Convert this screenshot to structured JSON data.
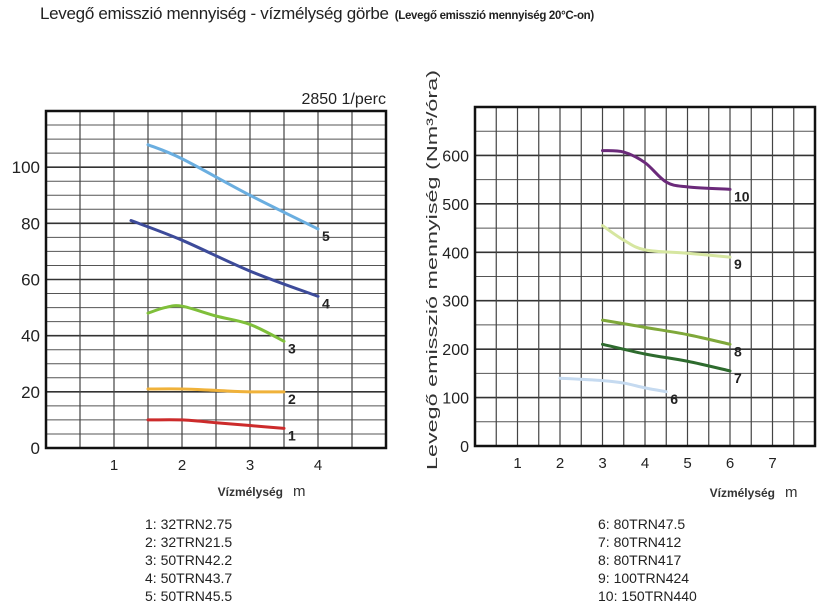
{
  "title": "Levegő emisszió mennyiség - vízmélység görbe",
  "subtitle": "(Levegő emisszió mennyiség 20°C-on)",
  "chart_data": [
    {
      "type": "line",
      "title": "2850 1/perc",
      "xlabel": "Vízmélység",
      "xunit": "m",
      "ylabel": "",
      "xlim": [
        0,
        5
      ],
      "ylim": [
        0,
        120
      ],
      "xticks": [
        "1",
        "2",
        "3",
        "4"
      ],
      "xtick_values": [
        1,
        2,
        3,
        4
      ],
      "yticks": [
        "0",
        "20",
        "40",
        "60",
        "80",
        "100"
      ],
      "ytick_values": [
        0,
        20,
        40,
        60,
        80,
        100
      ],
      "grid": true,
      "series": [
        {
          "name": "1",
          "color": "#cc2b2b",
          "x": [
            1.5,
            2,
            2.5,
            3,
            3.5
          ],
          "y": [
            10,
            10,
            9,
            8,
            7
          ]
        },
        {
          "name": "2",
          "color": "#f0b23a",
          "x": [
            1.5,
            2,
            2.5,
            3,
            3.5
          ],
          "y": [
            21,
            21,
            20.5,
            20,
            20
          ]
        },
        {
          "name": "3",
          "color": "#7fbf3a",
          "x": [
            1.5,
            1.75,
            2,
            2.5,
            3,
            3.5
          ],
          "y": [
            48,
            50,
            50.5,
            47,
            44,
            38
          ]
        },
        {
          "name": "4",
          "color": "#3d4b9a",
          "x": [
            1.25,
            2,
            3,
            4
          ],
          "y": [
            81,
            74,
            63,
            54
          ]
        },
        {
          "name": "5",
          "color": "#6aaee0",
          "x": [
            1.5,
            2,
            3,
            4
          ],
          "y": [
            108,
            103,
            90,
            78
          ]
        }
      ],
      "legend": [
        "1: 32TRN2.75",
        "2: 32TRN21.5",
        "3: 50TRN42.2",
        "4: 50TRN43.7",
        "5: 50TRN45.5"
      ]
    },
    {
      "type": "line",
      "title": "",
      "xlabel": "Vízmélység",
      "xunit": "m",
      "ylabel": "Levegő emisszió mennyiség (Nm³/óra)",
      "xlim": [
        0,
        8
      ],
      "ylim": [
        0,
        700
      ],
      "xticks": [
        "1",
        "2",
        "3",
        "4",
        "5",
        "6",
        "7"
      ],
      "xtick_values": [
        1,
        2,
        3,
        4,
        5,
        6,
        7
      ],
      "yticks": [
        "0",
        "100",
        "200",
        "300",
        "400",
        "500",
        "600"
      ],
      "ytick_values": [
        0,
        100,
        200,
        300,
        400,
        500,
        600
      ],
      "grid": true,
      "series": [
        {
          "name": "6",
          "color": "#c5daf0",
          "x": [
            2,
            3,
            3.5,
            4,
            4.5
          ],
          "y": [
            140,
            135,
            130,
            120,
            112
          ]
        },
        {
          "name": "7",
          "color": "#2e6b2e",
          "x": [
            3,
            4,
            5,
            6
          ],
          "y": [
            210,
            190,
            175,
            155
          ]
        },
        {
          "name": "8",
          "color": "#7fa83a",
          "x": [
            3,
            4,
            5,
            6
          ],
          "y": [
            260,
            245,
            230,
            210
          ]
        },
        {
          "name": "9",
          "color": "#d6e6a0",
          "x": [
            3,
            3.5,
            4,
            5,
            6
          ],
          "y": [
            455,
            425,
            405,
            398,
            390
          ]
        },
        {
          "name": "10",
          "color": "#6b2a7a",
          "x": [
            3,
            3.5,
            4,
            4.5,
            5,
            6
          ],
          "y": [
            610,
            607,
            585,
            545,
            535,
            530
          ]
        }
      ],
      "legend": [
        "6: 80TRN47.5",
        "7: 80TRN412",
        "8: 80TRN417",
        "9: 100TRN424",
        "10: 150TRN440"
      ]
    }
  ]
}
